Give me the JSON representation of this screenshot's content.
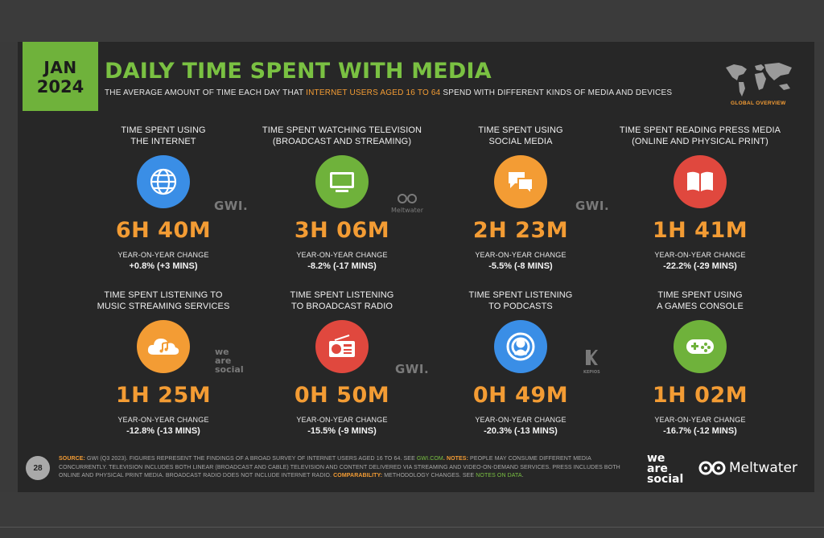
{
  "header": {
    "date_month": "JAN",
    "date_year": "2024",
    "title": "DAILY TIME SPENT WITH MEDIA",
    "subtitle_pre": "THE AVERAGE AMOUNT OF TIME EACH DAY THAT ",
    "subtitle_highlight": "INTERNET USERS AGED 16 TO 64",
    "subtitle_post": " SPEND WITH DIFFERENT KINDS OF MEDIA AND DEVICES",
    "badge": "GLOBAL OVERVIEW"
  },
  "stats": [
    {
      "label_1": "TIME SPENT USING",
      "label_2": "THE INTERNET",
      "icon": "globe-icon",
      "icon_color": "#3a8ee6",
      "value": "6H 40M",
      "yoy_label": "YEAR-ON-YEAR CHANGE",
      "change": "+0.8% (+3 MINS)"
    },
    {
      "label_1": "TIME SPENT WATCHING TELEVISION",
      "label_2": "(BROADCAST AND STREAMING)",
      "icon": "television-icon",
      "icon_color": "#6fb23b",
      "value": "3H 06M",
      "yoy_label": "YEAR-ON-YEAR CHANGE",
      "change": "-8.2% (-17 MINS)"
    },
    {
      "label_1": "TIME SPENT USING",
      "label_2": "SOCIAL MEDIA",
      "icon": "chat-bubbles-icon",
      "icon_color": "#f39c34",
      "value": "2H 23M",
      "yoy_label": "YEAR-ON-YEAR CHANGE",
      "change": "-5.5% (-8 MINS)"
    },
    {
      "label_1": "TIME SPENT READING PRESS MEDIA",
      "label_2": "(ONLINE AND PHYSICAL PRINT)",
      "icon": "open-book-icon",
      "icon_color": "#e0483e",
      "value": "1H 41M",
      "yoy_label": "YEAR-ON-YEAR CHANGE",
      "change": "-22.2% (-29 MINS)"
    },
    {
      "label_1": "TIME SPENT LISTENING TO",
      "label_2": "MUSIC STREAMING SERVICES",
      "icon": "cloud-music-icon",
      "icon_color": "#f39c34",
      "value": "1H 25M",
      "yoy_label": "YEAR-ON-YEAR CHANGE",
      "change": "-12.8% (-13 MINS)"
    },
    {
      "label_1": "TIME SPENT LISTENING",
      "label_2": "TO BROADCAST RADIO",
      "icon": "radio-icon",
      "icon_color": "#e0483e",
      "value": "0H 50M",
      "yoy_label": "YEAR-ON-YEAR CHANGE",
      "change": "-15.5% (-9 MINS)"
    },
    {
      "label_1": "TIME SPENT LISTENING",
      "label_2": "TO PODCASTS",
      "icon": "podcast-icon",
      "icon_color": "#3a8ee6",
      "value": "0H 49M",
      "yoy_label": "YEAR-ON-YEAR CHANGE",
      "change": "-20.3% (-13 MINS)"
    },
    {
      "label_1": "TIME SPENT USING",
      "label_2": "A GAMES CONSOLE",
      "icon": "gamepad-icon",
      "icon_color": "#6fb23b",
      "value": "1H 02M",
      "yoy_label": "YEAR-ON-YEAR CHANGE",
      "change": "-16.7% (-12 MINS)"
    }
  ],
  "watermarks": {
    "gwi": "GWI.",
    "meltwater": "Meltwater",
    "we_are_social_1": "we",
    "we_are_social_2": "are",
    "we_are_social_3": "social",
    "kepios": "KEPIOS"
  },
  "footer": {
    "page_number": "28",
    "source_key": "SOURCE:",
    "source_text": " GWI (Q3 2023). FIGURES REPRESENT THE FINDINGS OF A BROAD SURVEY OF INTERNET USERS AGED 16 TO 64. SEE ",
    "source_link": "GWI.COM",
    "notes_key": ". NOTES:",
    "notes_text": " PEOPLE MAY CONSUME DIFFERENT MEDIA CONCURRENTLY. TELEVISION INCLUDES BOTH LINEAR (BROADCAST AND CABLE) TELEVISION AND CONTENT DELIVERED VIA STREAMING AND VIDEO-ON-DEMAND SERVICES. PRESS INCLUDES BOTH ONLINE AND PHYSICAL PRINT MEDIA. BROADCAST RADIO DOES NOT INCLUDE INTERNET RADIO. ",
    "comp_key": "COMPARABILITY:",
    "comp_text": " METHODOLOGY CHANGES. SEE ",
    "comp_link": "NOTES ON DATA",
    "comp_end": ".",
    "logo_was_1": "we",
    "logo_was_2": "are",
    "logo_was_3": "social",
    "logo_meltwater": "Meltwater"
  }
}
